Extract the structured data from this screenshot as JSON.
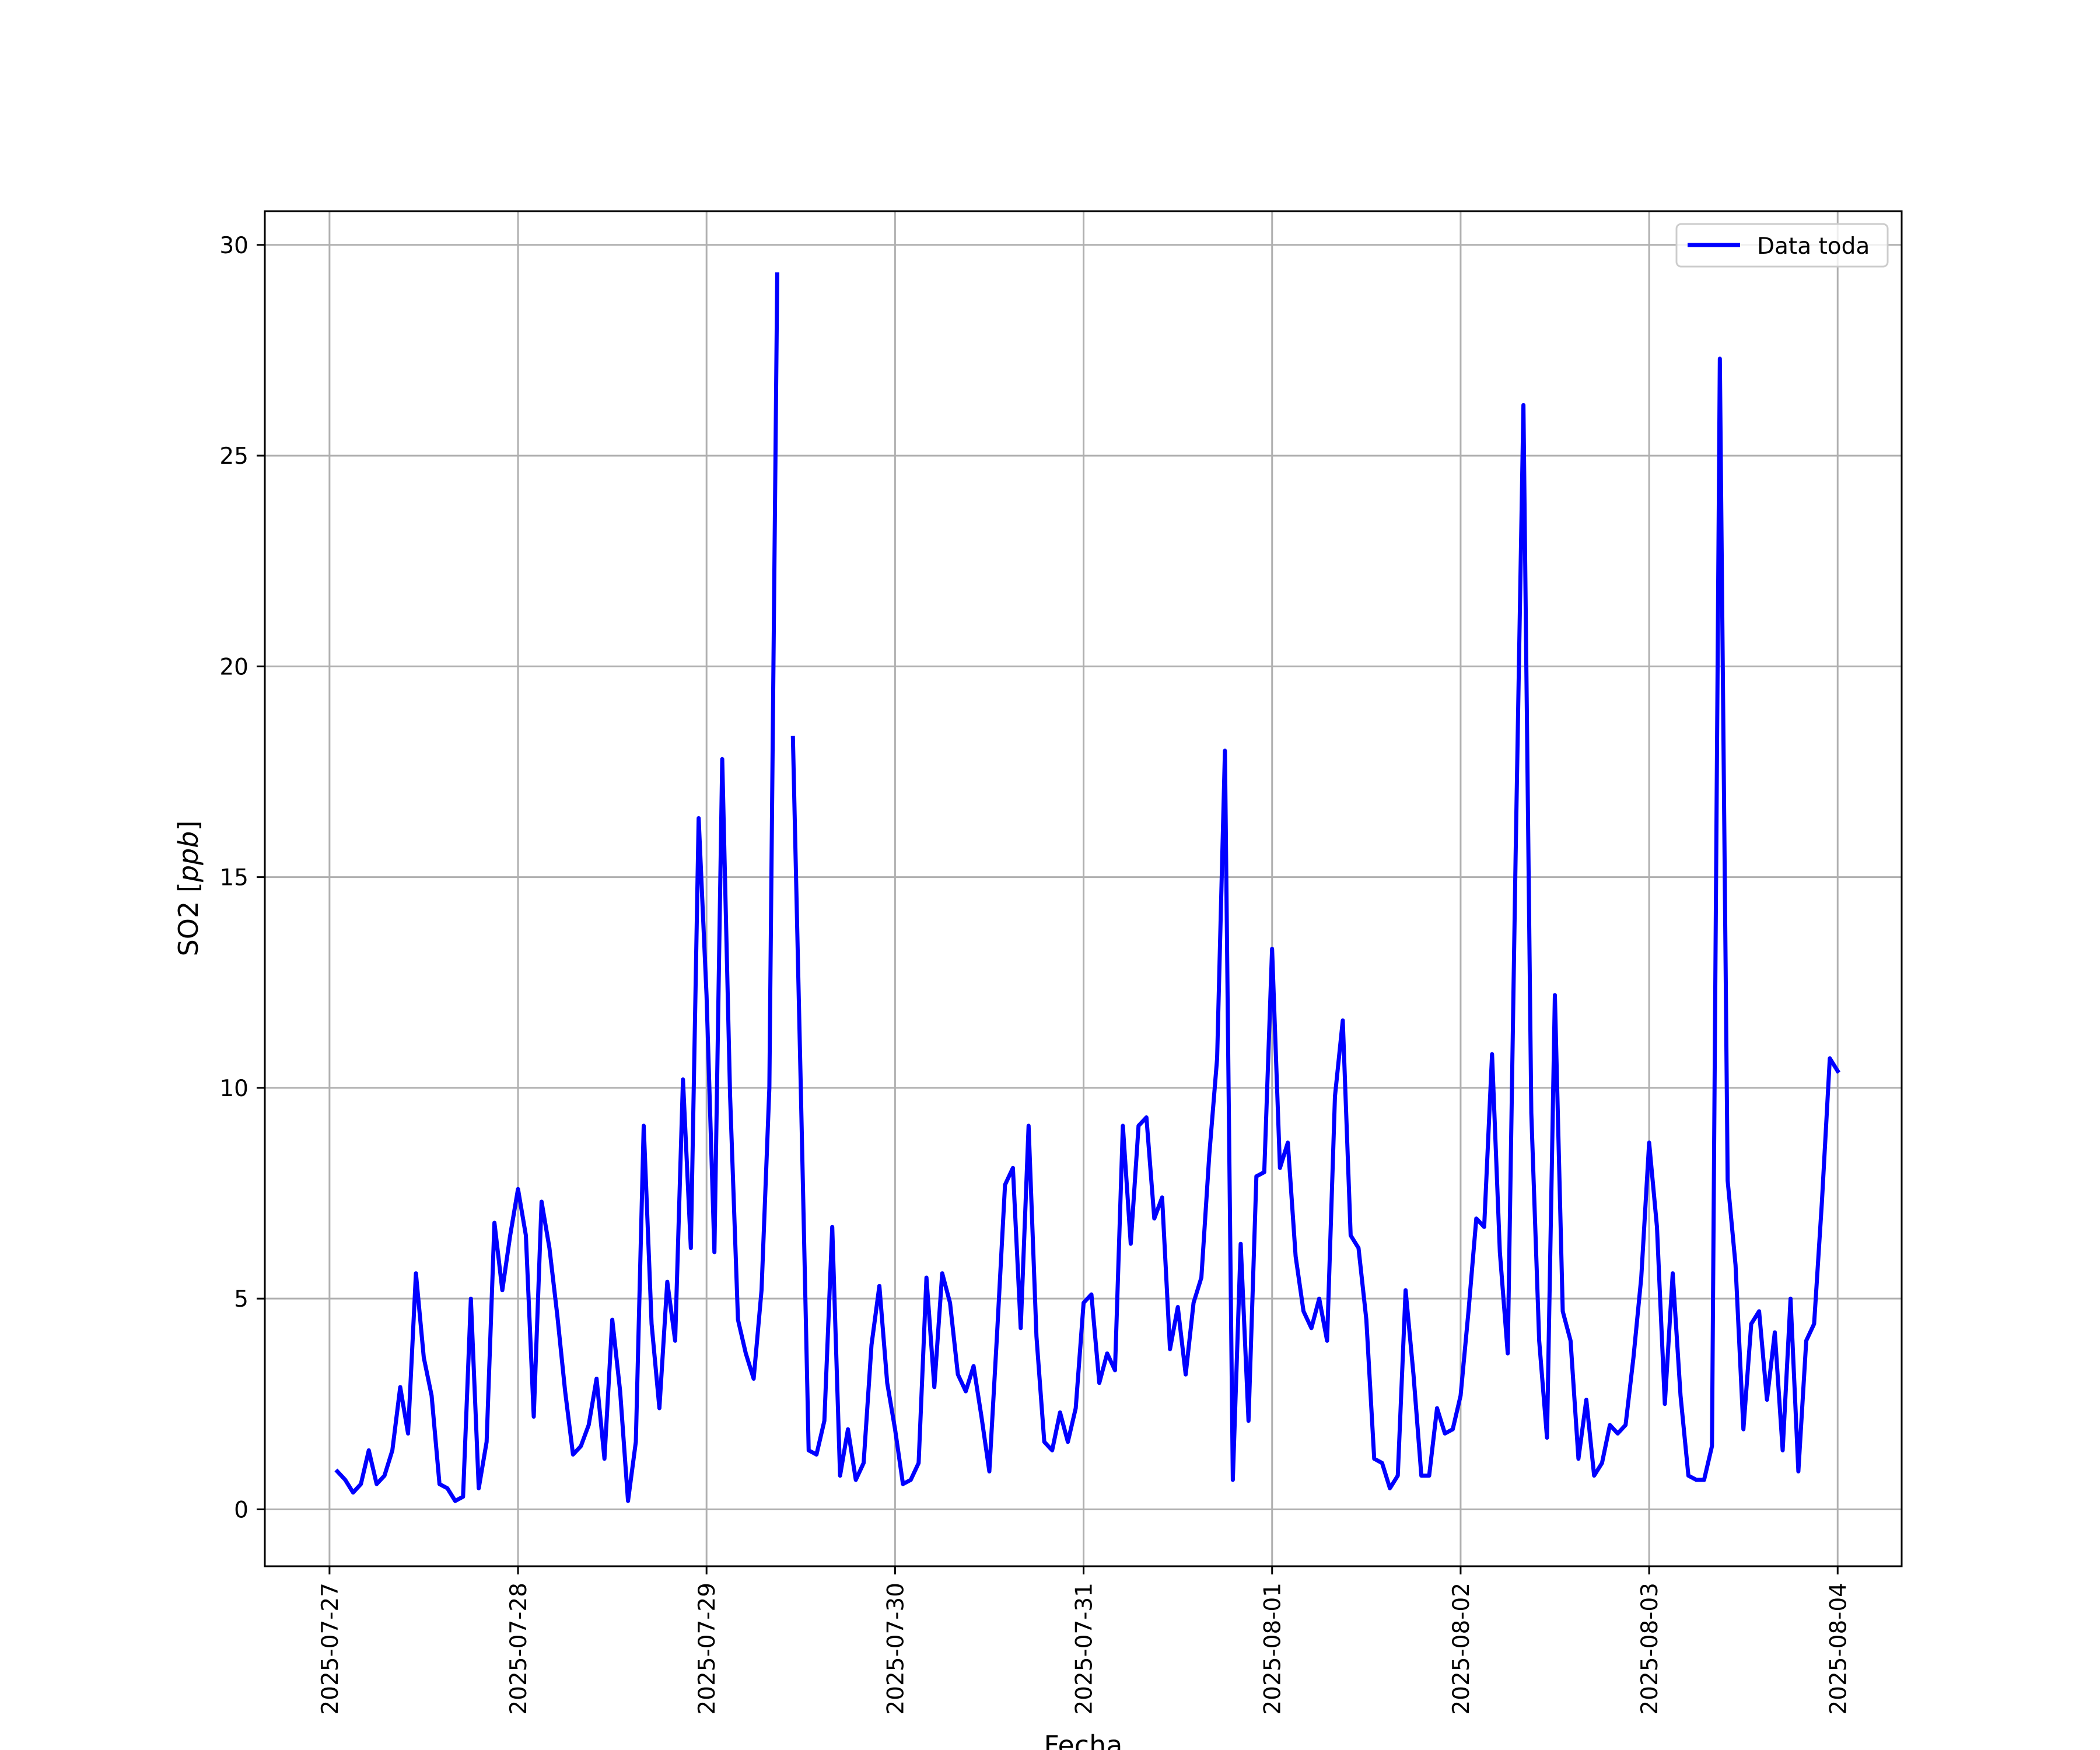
{
  "chart_data": {
    "type": "line",
    "title": "",
    "xlabel": "Fecha",
    "ylabel": "SO2 [ppb]",
    "ylabel_parts": {
      "plain": "SO2 [",
      "italic": "ppb",
      "close": "]"
    },
    "x_ticks": [
      "2025-07-27",
      "2025-07-28",
      "2025-07-29",
      "2025-07-30",
      "2025-07-31",
      "2025-08-01",
      "2025-08-02",
      "2025-08-03",
      "2025-08-04"
    ],
    "y_ticks": [
      "0",
      "5",
      "10",
      "15",
      "20",
      "25",
      "30"
    ],
    "y_tick_values": [
      0,
      5,
      10,
      15,
      20,
      25,
      30
    ],
    "xlim": [
      "2025-07-26T15:46",
      "2025-08-04T08:09"
    ],
    "ylim": [
      -1.35,
      30.8
    ],
    "grid": true,
    "legend": {
      "position": "top-right",
      "label": "Data toda"
    },
    "colors": {
      "series": "#0000ff",
      "grid": "#b0b0b0",
      "axis": "#000000"
    },
    "series": [
      {
        "name": "Data toda",
        "x": [
          "2025-07-27T01:00",
          "2025-07-27T02:00",
          "2025-07-27T03:00",
          "2025-07-27T04:00",
          "2025-07-27T05:00",
          "2025-07-27T06:00",
          "2025-07-27T07:00",
          "2025-07-27T08:00",
          "2025-07-27T09:00",
          "2025-07-27T10:00",
          "2025-07-27T11:00",
          "2025-07-27T12:00",
          "2025-07-27T13:00",
          "2025-07-27T14:00",
          "2025-07-27T15:00",
          "2025-07-27T16:00",
          "2025-07-27T17:00",
          "2025-07-27T18:00",
          "2025-07-27T19:00",
          "2025-07-27T20:00",
          "2025-07-27T21:00",
          "2025-07-27T22:00",
          "2025-07-27T23:00",
          "2025-07-28T00:00",
          "2025-07-28T01:00",
          "2025-07-28T02:00",
          "2025-07-28T03:00",
          "2025-07-28T04:00",
          "2025-07-28T05:00",
          "2025-07-28T06:00",
          "2025-07-28T07:00",
          "2025-07-28T08:00",
          "2025-07-28T09:00",
          "2025-07-28T10:00",
          "2025-07-28T11:00",
          "2025-07-28T12:00",
          "2025-07-28T13:00",
          "2025-07-28T14:00",
          "2025-07-28T15:00",
          "2025-07-28T16:00",
          "2025-07-28T17:00",
          "2025-07-28T18:00",
          "2025-07-28T19:00",
          "2025-07-28T20:00",
          "2025-07-28T21:00",
          "2025-07-28T22:00",
          "2025-07-28T23:00",
          "2025-07-29T00:00",
          "2025-07-29T01:00",
          "2025-07-29T02:00",
          "2025-07-29T03:00",
          "2025-07-29T04:00",
          "2025-07-29T05:00",
          "2025-07-29T06:00",
          "2025-07-29T07:00",
          "2025-07-29T08:00",
          "2025-07-29T09:00",
          "2025-07-29T10:00",
          "2025-07-29T11:00",
          "2025-07-29T12:00",
          "2025-07-29T13:00",
          "2025-07-29T14:00",
          "2025-07-29T15:00",
          "2025-07-29T16:00",
          "2025-07-29T17:00",
          "2025-07-29T18:00",
          "2025-07-29T19:00",
          "2025-07-29T20:00",
          "2025-07-29T21:00",
          "2025-07-29T22:00",
          "2025-07-29T23:00",
          "2025-07-30T00:00",
          "2025-07-30T01:00",
          "2025-07-30T02:00",
          "2025-07-30T03:00",
          "2025-07-30T04:00",
          "2025-07-30T05:00",
          "2025-07-30T06:00",
          "2025-07-30T07:00",
          "2025-07-30T08:00",
          "2025-07-30T09:00",
          "2025-07-30T10:00",
          "2025-07-30T11:00",
          "2025-07-30T12:00",
          "2025-07-30T13:00",
          "2025-07-30T14:00",
          "2025-07-30T15:00",
          "2025-07-30T16:00",
          "2025-07-30T17:00",
          "2025-07-30T18:00",
          "2025-07-30T19:00",
          "2025-07-30T20:00",
          "2025-07-30T21:00",
          "2025-07-30T22:00",
          "2025-07-30T23:00",
          "2025-07-31T00:00",
          "2025-07-31T01:00",
          "2025-07-31T02:00",
          "2025-07-31T03:00",
          "2025-07-31T04:00",
          "2025-07-31T05:00",
          "2025-07-31T06:00",
          "2025-07-31T07:00",
          "2025-07-31T08:00",
          "2025-07-31T09:00",
          "2025-07-31T10:00",
          "2025-07-31T11:00",
          "2025-07-31T12:00",
          "2025-07-31T13:00",
          "2025-07-31T14:00",
          "2025-07-31T15:00",
          "2025-07-31T16:00",
          "2025-07-31T17:00",
          "2025-07-31T18:00",
          "2025-07-31T19:00",
          "2025-07-31T20:00",
          "2025-07-31T21:00",
          "2025-07-31T22:00",
          "2025-07-31T23:00",
          "2025-08-01T00:00",
          "2025-08-01T01:00",
          "2025-08-01T02:00",
          "2025-08-01T03:00",
          "2025-08-01T04:00",
          "2025-08-01T05:00",
          "2025-08-01T06:00",
          "2025-08-01T07:00",
          "2025-08-01T08:00",
          "2025-08-01T09:00",
          "2025-08-01T10:00",
          "2025-08-01T11:00",
          "2025-08-01T12:00",
          "2025-08-01T13:00",
          "2025-08-01T14:00",
          "2025-08-01T15:00",
          "2025-08-01T16:00",
          "2025-08-01T17:00",
          "2025-08-01T18:00",
          "2025-08-01T19:00",
          "2025-08-01T20:00",
          "2025-08-01T21:00",
          "2025-08-01T22:00",
          "2025-08-01T23:00",
          "2025-08-02T00:00",
          "2025-08-02T01:00",
          "2025-08-02T02:00",
          "2025-08-02T03:00",
          "2025-08-02T04:00",
          "2025-08-02T05:00",
          "2025-08-02T06:00",
          "2025-08-02T07:00",
          "2025-08-02T08:00",
          "2025-08-02T09:00",
          "2025-08-02T10:00",
          "2025-08-02T11:00",
          "2025-08-02T12:00",
          "2025-08-02T13:00",
          "2025-08-02T14:00",
          "2025-08-02T15:00",
          "2025-08-02T16:00",
          "2025-08-02T17:00",
          "2025-08-02T18:00",
          "2025-08-02T19:00",
          "2025-08-02T20:00",
          "2025-08-02T21:00",
          "2025-08-02T22:00",
          "2025-08-02T23:00",
          "2025-08-03T00:00",
          "2025-08-03T01:00",
          "2025-08-03T02:00",
          "2025-08-03T03:00",
          "2025-08-03T04:00",
          "2025-08-03T05:00",
          "2025-08-03T06:00",
          "2025-08-03T07:00",
          "2025-08-03T08:00",
          "2025-08-03T09:00",
          "2025-08-03T10:00",
          "2025-08-03T11:00",
          "2025-08-03T12:00",
          "2025-08-03T13:00",
          "2025-08-03T14:00",
          "2025-08-03T15:00",
          "2025-08-03T16:00",
          "2025-08-03T17:00",
          "2025-08-03T18:00",
          "2025-08-03T19:00",
          "2025-08-03T20:00",
          "2025-08-03T21:00",
          "2025-08-03T22:00",
          "2025-08-03T23:00",
          "2025-08-04T00:00"
        ],
        "y": [
          0.9,
          0.7,
          0.4,
          0.6,
          1.4,
          0.6,
          0.8,
          1.4,
          2.9,
          1.8,
          5.6,
          3.6,
          2.7,
          0.6,
          0.5,
          0.2,
          0.3,
          5.0,
          0.5,
          1.6,
          6.8,
          5.2,
          6.5,
          7.6,
          6.5,
          2.2,
          7.3,
          6.2,
          4.6,
          2.8,
          1.3,
          1.5,
          2.0,
          3.1,
          1.2,
          4.5,
          2.8,
          0.2,
          1.6,
          9.1,
          4.4,
          2.4,
          5.4,
          4.0,
          10.2,
          6.2,
          16.4,
          12.2,
          6.1,
          17.8,
          9.8,
          4.5,
          3.7,
          3.1,
          5.2,
          10.0,
          29.3,
          null,
          18.3,
          10.0,
          1.4,
          1.3,
          2.1,
          6.7,
          0.8,
          1.9,
          0.7,
          1.1,
          3.9,
          5.3,
          3.0,
          1.9,
          0.6,
          0.7,
          1.1,
          5.5,
          2.9,
          5.6,
          4.9,
          3.2,
          2.8,
          3.4,
          2.2,
          0.9,
          4.2,
          7.7,
          8.1,
          4.3,
          9.1,
          4.1,
          1.6,
          1.4,
          2.3,
          1.6,
          2.4,
          4.9,
          5.1,
          3.0,
          3.7,
          3.3,
          9.1,
          6.3,
          9.1,
          9.3,
          6.9,
          7.4,
          3.8,
          4.8,
          3.2,
          4.9,
          5.5,
          8.4,
          10.7,
          18.0,
          0.7,
          6.3,
          2.1,
          7.9,
          8.0,
          13.3,
          8.1,
          8.7,
          6.0,
          4.7,
          4.3,
          5.0,
          4.0,
          9.8,
          11.6,
          6.5,
          6.2,
          4.5,
          1.2,
          1.1,
          0.5,
          0.8,
          5.2,
          3.2,
          0.8,
          0.8,
          2.4,
          1.8,
          1.9,
          2.7,
          4.7,
          6.9,
          6.7,
          10.8,
          6.1,
          3.7,
          15.5,
          26.2,
          9.4,
          4.0,
          1.7,
          12.2,
          4.7,
          4.0,
          1.2,
          2.6,
          0.8,
          1.1,
          2.0,
          1.8,
          2.0,
          3.6,
          5.5,
          8.7,
          6.7,
          2.5,
          5.6,
          2.7,
          0.8,
          0.7,
          0.7,
          1.5,
          27.3,
          7.8,
          5.8,
          1.9,
          4.4,
          4.7,
          2.6,
          4.2,
          1.4,
          5.0,
          0.9,
          4.0,
          4.4,
          7.3,
          10.7,
          10.4
        ]
      }
    ]
  }
}
